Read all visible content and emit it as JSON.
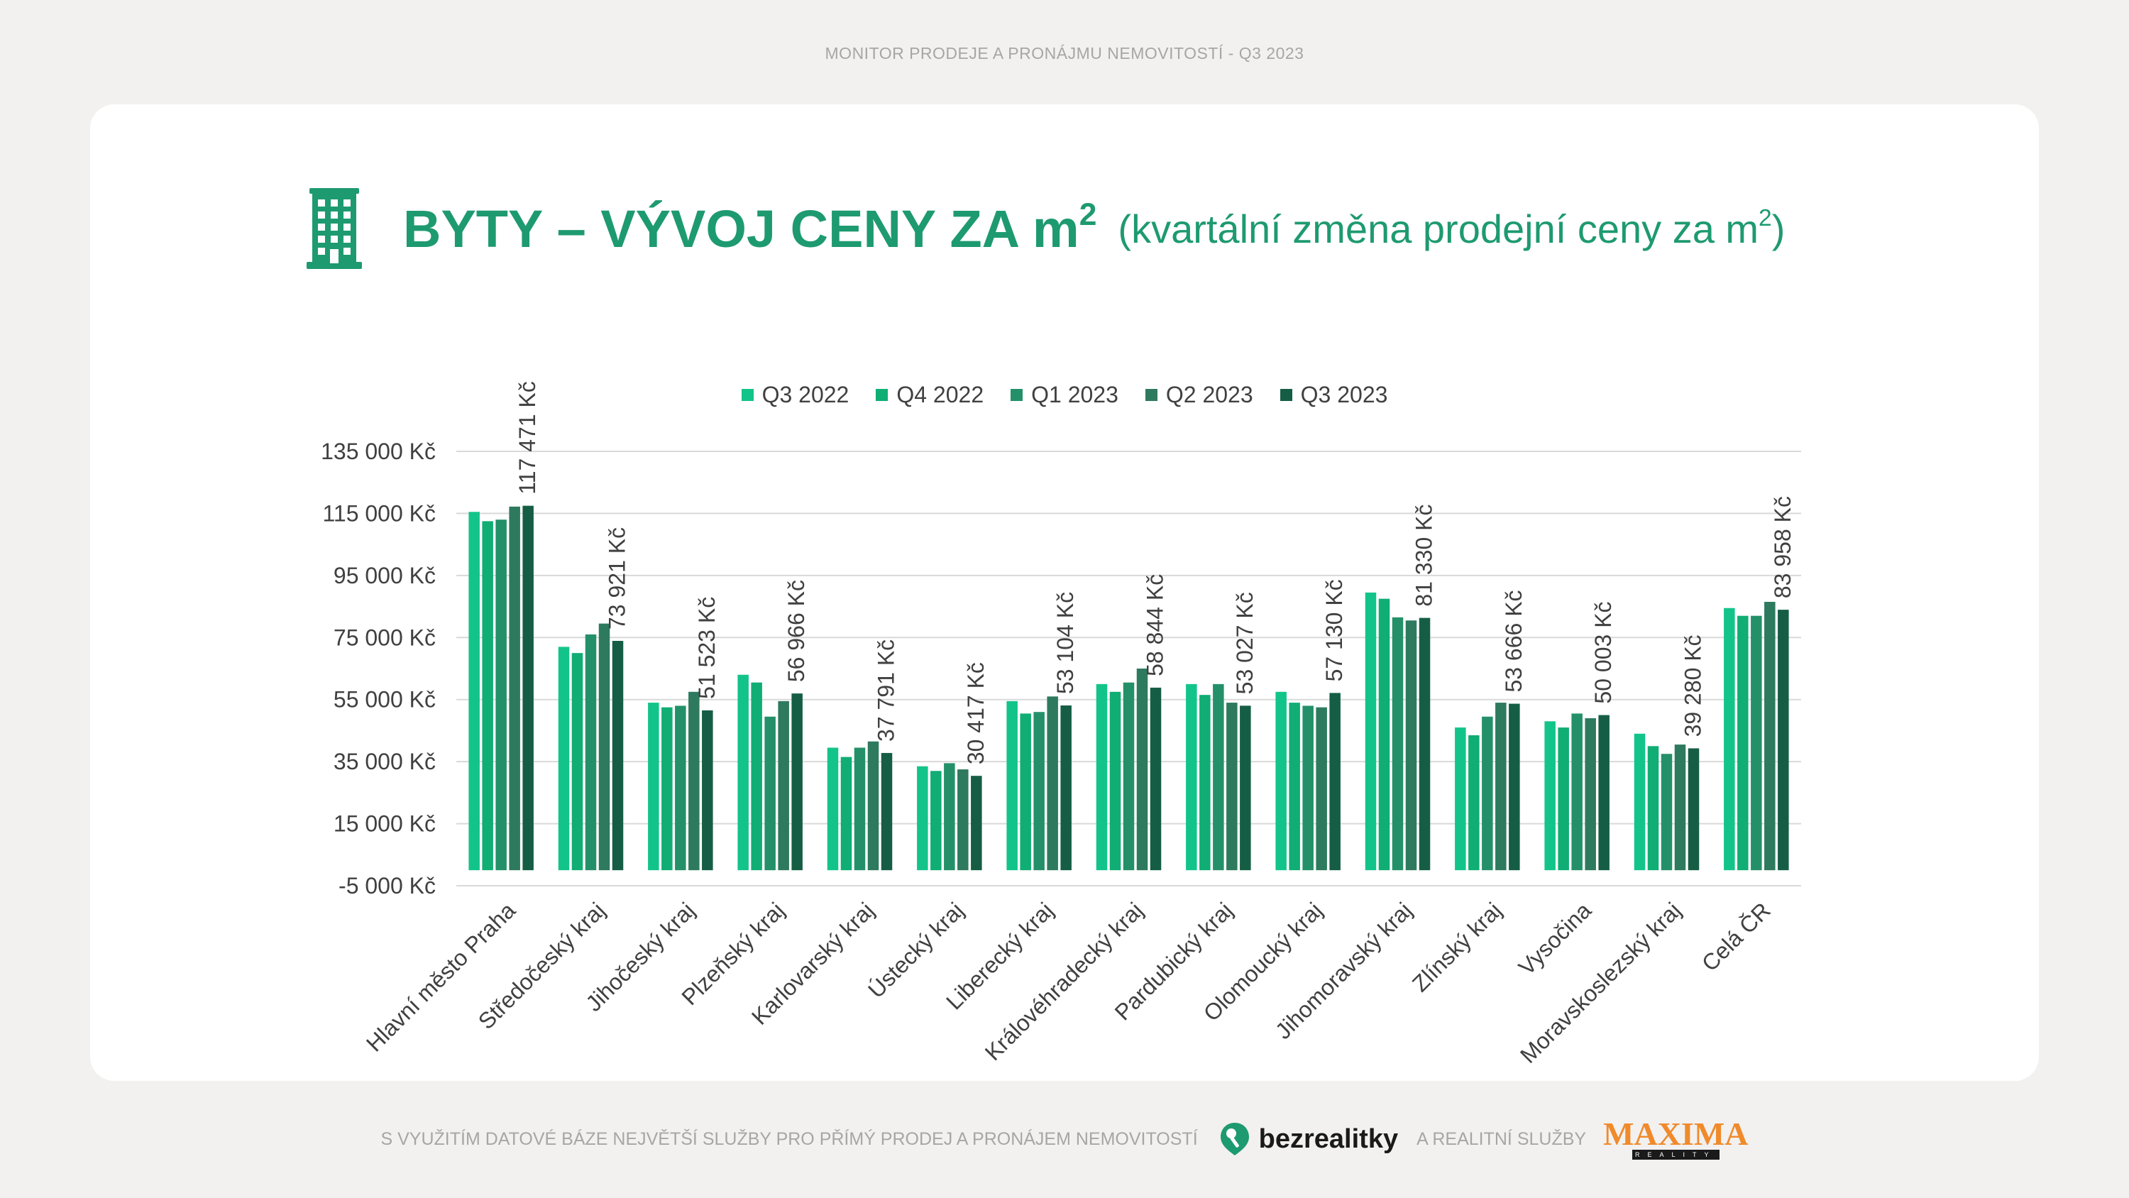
{
  "header": {
    "top_title": "MONITOR PRODEJE A PRONÁJMU NEMOVITOSTÍ  - Q3 2023"
  },
  "heading": {
    "main": "BYTY – VÝVOJ CENY ZA m",
    "main_sup": "2",
    "sub": "(kvartální změna prodejní ceny za m",
    "sub_sup": "2",
    "sub_close": ")",
    "icon": "apartment-building-icon"
  },
  "colors": {
    "accent": "#1e9a70",
    "series": [
      "#13c48a",
      "#10ad74",
      "#24906a",
      "#2e7a5f",
      "#155e45"
    ]
  },
  "chart_data": {
    "type": "bar",
    "categories": [
      "Hlavní město Praha",
      "Středočeský kraj",
      "Jihočeský kraj",
      "Plzeňský kraj",
      "Karlovarský kraj",
      "Ústecký kraj",
      "Liberecký kraj",
      "Královéhradecký kraj",
      "Pardubický kraj",
      "Olomoucký kraj",
      "Jihomoravský kraj",
      "Zlínský kraj",
      "Vysočina",
      "Moravskoslezský kraj",
      "Celá ČR"
    ],
    "series": [
      {
        "name": "Q3 2022",
        "values": [
          115500,
          72000,
          54000,
          63000,
          39500,
          33500,
          54500,
          60000,
          60000,
          57500,
          89500,
          46000,
          48000,
          44000,
          84500
        ]
      },
      {
        "name": "Q4 2022",
        "values": [
          112500,
          70000,
          52500,
          60500,
          36500,
          32000,
          50500,
          57500,
          56500,
          54000,
          87500,
          43500,
          46000,
          40000,
          82000
        ]
      },
      {
        "name": "Q1 2023",
        "values": [
          113000,
          76000,
          53000,
          49500,
          39500,
          34500,
          51000,
          60500,
          60000,
          53000,
          81500,
          49500,
          50500,
          37500,
          82000
        ]
      },
      {
        "name": "Q2 2023",
        "values": [
          117200,
          79500,
          57500,
          54500,
          41500,
          32500,
          56000,
          65000,
          54000,
          52500,
          80500,
          54000,
          49000,
          40500,
          86500
        ]
      },
      {
        "name": "Q3 2023",
        "values": [
          117471,
          73921,
          51523,
          56966,
          37791,
          30417,
          53104,
          58844,
          53027,
          57130,
          81330,
          53666,
          50003,
          39280,
          83958
        ]
      }
    ],
    "data_labels": [
      "117 471 Kč",
      "73 921 Kč",
      "51 523 Kč",
      "56 966 Kč",
      "37 791 Kč",
      "30 417 Kč",
      "53 104 Kč",
      "58 844 Kč",
      "53 027 Kč",
      "57 130 Kč",
      "81 330 Kč",
      "53 666 Kč",
      "50 003 Kč",
      "39 280 Kč",
      "83 958 Kč"
    ],
    "y_ticks": [
      -5000,
      15000,
      35000,
      55000,
      75000,
      95000,
      115000,
      135000
    ],
    "y_tick_labels": [
      "-5 000 Kč",
      "15 000 Kč",
      "35 000 Kč",
      "55 000 Kč",
      "75 000 Kč",
      "95 000 Kč",
      "115 000 Kč",
      "135 000 Kč"
    ],
    "ylim": [
      -5000,
      135000
    ],
    "grid": true,
    "legend_position": "top"
  },
  "footer": {
    "text_left": "S VYUŽITÍM DATOVÉ BÁZE NEJVĚTŠÍ SLUŽBY PRO PŘÍMÝ PRODEJ A PRONÁJEM NEMOVITOSTÍ",
    "brand1": "bezrealitky",
    "text_mid": "A REALITNÍ SLUŽBY",
    "brand2": "MAXIMA",
    "brand2_sub": "REALITY"
  }
}
